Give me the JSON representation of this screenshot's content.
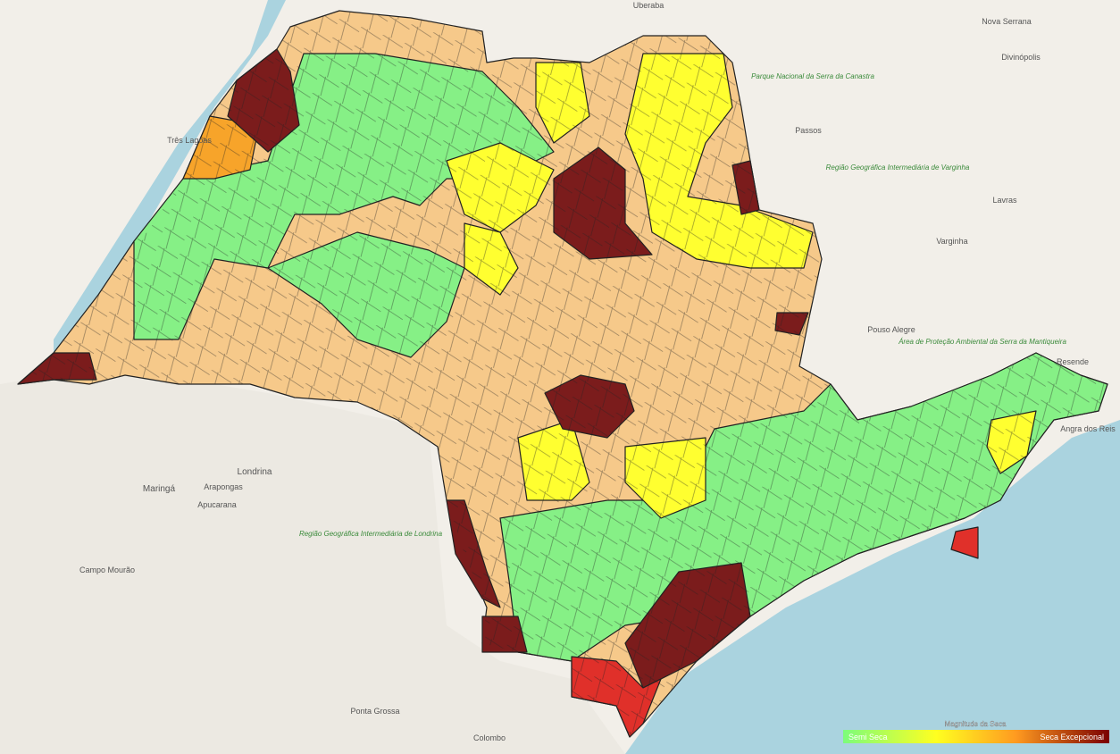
{
  "places": [
    "Uberaba",
    "Nova Serrana",
    "Divinópolis",
    "Três Lagoas",
    "Passos",
    "Lavras",
    "Varginha",
    "Pouso Alegre",
    "Resende",
    "Londrina",
    "Maringá",
    "Arapongas",
    "Apucarana",
    "Campo Mourão",
    "Ponta Grossa",
    "Colombo",
    "Angra dos Reis",
    "Parque Nacional da Serra da Canastra",
    "Região Geográfica Intermediária de Varginha",
    "Região Geográfica Intermediária de Londrina",
    "Área de Proteção Ambiental da Serra da Mantiqueira"
  ],
  "legend": {
    "title": "Magnitude da Seca",
    "min_label": "Semi Seca",
    "max_label": "Seca Excepcional"
  }
}
